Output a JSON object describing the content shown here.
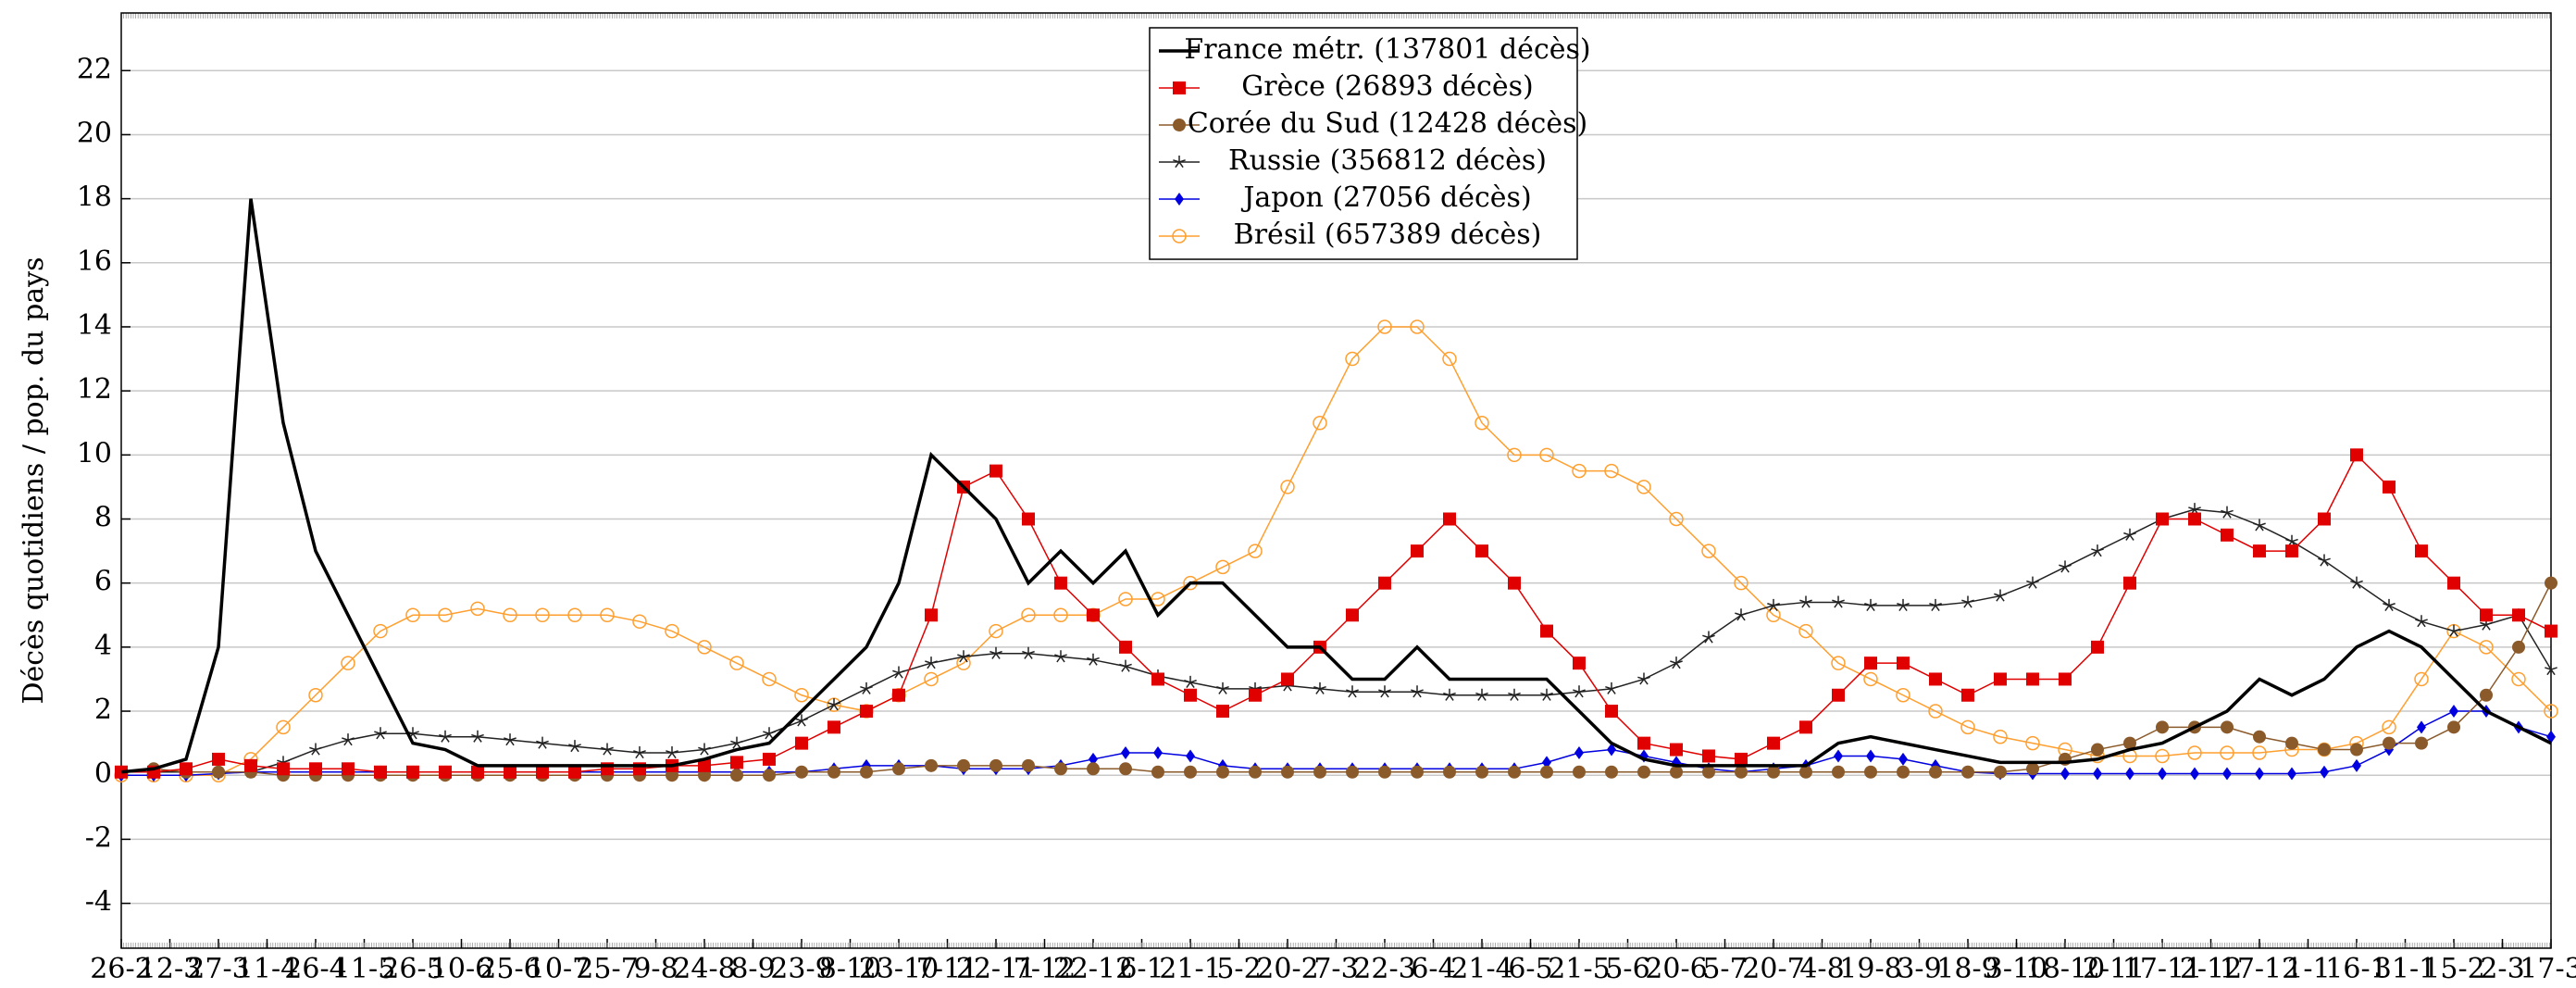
{
  "chart_data": {
    "type": "line",
    "ylabel": "Décès quotidiens / pop. du pays",
    "x": [
      0,
      10,
      20,
      30,
      40,
      50,
      60,
      70,
      80,
      90,
      100,
      110,
      120,
      130,
      140,
      150,
      160,
      170,
      180,
      190,
      200,
      210,
      220,
      230,
      240,
      250,
      260,
      270,
      280,
      290,
      300,
      310,
      320,
      330,
      340,
      350,
      360,
      370,
      380,
      390,
      400,
      410,
      420,
      430,
      440,
      450,
      460,
      470,
      480,
      490,
      500,
      510,
      520,
      530,
      540,
      550,
      560,
      570,
      580,
      590,
      600,
      610,
      620,
      630,
      640,
      650,
      660,
      670,
      680,
      690,
      700,
      710,
      720,
      730,
      740,
      750
    ],
    "xlim": [
      0,
      750
    ],
    "xticks": [
      {
        "value": 0,
        "label": "26-2"
      },
      {
        "value": 15,
        "label": "12-3"
      },
      {
        "value": 30,
        "label": "27-3"
      },
      {
        "value": 45,
        "label": "11-4"
      },
      {
        "value": 60,
        "label": "26-4"
      },
      {
        "value": 75,
        "label": "11-5"
      },
      {
        "value": 90,
        "label": "26-5"
      },
      {
        "value": 105,
        "label": "10-6"
      },
      {
        "value": 120,
        "label": "25-6"
      },
      {
        "value": 135,
        "label": "10-7"
      },
      {
        "value": 150,
        "label": "25-7"
      },
      {
        "value": 165,
        "label": "9-8"
      },
      {
        "value": 180,
        "label": "24-8"
      },
      {
        "value": 195,
        "label": "8-9"
      },
      {
        "value": 210,
        "label": "23-9"
      },
      {
        "value": 225,
        "label": "8-10"
      },
      {
        "value": 240,
        "label": "23-10"
      },
      {
        "value": 255,
        "label": "7-11"
      },
      {
        "value": 270,
        "label": "22-11"
      },
      {
        "value": 285,
        "label": "7-12"
      },
      {
        "value": 300,
        "label": "22-12"
      },
      {
        "value": 315,
        "label": "6-1"
      },
      {
        "value": 330,
        "label": "21-1"
      },
      {
        "value": 345,
        "label": "5-2"
      },
      {
        "value": 360,
        "label": "20-2"
      },
      {
        "value": 375,
        "label": "7-3"
      },
      {
        "value": 390,
        "label": "22-3"
      },
      {
        "value": 405,
        "label": "6-4"
      },
      {
        "value": 420,
        "label": "21-4"
      },
      {
        "value": 435,
        "label": "6-5"
      },
      {
        "value": 450,
        "label": "21-5"
      },
      {
        "value": 465,
        "label": "5-6"
      },
      {
        "value": 480,
        "label": "20-6"
      },
      {
        "value": 495,
        "label": "5-7"
      },
      {
        "value": 510,
        "label": "20-7"
      },
      {
        "value": 525,
        "label": "4-8"
      },
      {
        "value": 540,
        "label": "19-8"
      },
      {
        "value": 555,
        "label": "3-9"
      },
      {
        "value": 570,
        "label": "18-9"
      },
      {
        "value": 585,
        "label": "3-10"
      },
      {
        "value": 600,
        "label": "18-10"
      },
      {
        "value": 615,
        "label": "2-11"
      },
      {
        "value": 630,
        "label": "17-11"
      },
      {
        "value": 645,
        "label": "2-12"
      },
      {
        "value": 660,
        "label": "17-12"
      },
      {
        "value": 675,
        "label": "1-1"
      },
      {
        "value": 690,
        "label": "16-1"
      },
      {
        "value": 705,
        "label": "31-1"
      },
      {
        "value": 720,
        "label": "15-2"
      },
      {
        "value": 735,
        "label": "2-3"
      },
      {
        "value": 750,
        "label": "17-3"
      }
    ],
    "ylim": [
      -5.4,
      23.8
    ],
    "yticks": [
      -4,
      -2,
      0,
      2,
      4,
      6,
      8,
      10,
      12,
      14,
      16,
      18,
      20,
      22
    ],
    "grid": true,
    "legend": "top",
    "series": [
      {
        "name": "France métr. (137801 décès)",
        "color": "#000000",
        "marker": "none",
        "values": [
          0.1,
          0.2,
          0.5,
          4,
          18,
          11,
          7,
          5,
          3,
          1,
          0.8,
          0.3,
          0.3,
          0.3,
          0.3,
          0.3,
          0.3,
          0.3,
          0.5,
          0.8,
          1,
          2,
          3,
          4,
          6,
          10,
          9,
          8,
          6,
          7,
          6,
          7,
          5,
          6,
          6,
          5,
          4,
          4,
          3,
          3,
          4,
          3,
          3,
          3,
          3,
          2,
          1,
          0.5,
          0.3,
          0.3,
          0.3,
          0.3,
          0.3,
          1,
          1.2,
          1,
          0.8,
          0.6,
          0.4,
          0.4,
          0.4,
          0.5,
          0.8,
          1,
          1.5,
          2,
          3,
          2.5,
          3,
          4,
          4.5,
          4,
          3,
          2,
          1.5,
          1
        ]
      },
      {
        "name": "Grèce (26893 décès)",
        "color": "#e00000",
        "marker": "square",
        "values": [
          0.1,
          0.1,
          0.2,
          0.5,
          0.3,
          0.2,
          0.2,
          0.2,
          0.1,
          0.1,
          0.1,
          0.1,
          0.1,
          0.1,
          0.1,
          0.2,
          0.2,
          0.3,
          0.3,
          0.4,
          0.5,
          1,
          1.5,
          2,
          2.5,
          5,
          9,
          9.5,
          8,
          6,
          5,
          4,
          3,
          2.5,
          2,
          2.5,
          3,
          4,
          5,
          6,
          7,
          8,
          7,
          6,
          4.5,
          3.5,
          2,
          1,
          0.8,
          0.6,
          0.5,
          1,
          1.5,
          2.5,
          3.5,
          3.5,
          3,
          2.5,
          3,
          3,
          3,
          4,
          6,
          8,
          8,
          7.5,
          7,
          7,
          8,
          10,
          9,
          7,
          6,
          5,
          5,
          4.5
        ]
      },
      {
        "name": "Corée du Sud (12428 décès)",
        "color": "#8b5a2b",
        "marker": "circle",
        "values": [
          0.1,
          0.2,
          0.1,
          0.1,
          0.1,
          0,
          0,
          0,
          0,
          0,
          0,
          0,
          0,
          0,
          0,
          0,
          0,
          0,
          0,
          0,
          0,
          0.1,
          0.1,
          0.1,
          0.2,
          0.3,
          0.3,
          0.3,
          0.3,
          0.2,
          0.2,
          0.2,
          0.1,
          0.1,
          0.1,
          0.1,
          0.1,
          0.1,
          0.1,
          0.1,
          0.1,
          0.1,
          0.1,
          0.1,
          0.1,
          0.1,
          0.1,
          0.1,
          0.1,
          0.1,
          0.1,
          0.1,
          0.1,
          0.1,
          0.1,
          0.1,
          0.1,
          0.1,
          0.1,
          0.2,
          0.5,
          0.8,
          1,
          1.5,
          1.5,
          1.5,
          1.2,
          1,
          0.8,
          0.8,
          1,
          1,
          1.5,
          2.5,
          4,
          6
        ]
      },
      {
        "name": "Russie (356812 décès)",
        "color": "#222222",
        "marker": "star",
        "values": [
          0.1,
          0.1,
          0.1,
          0.1,
          0.1,
          0.4,
          0.8,
          1.1,
          1.3,
          1.3,
          1.2,
          1.2,
          1.1,
          1,
          0.9,
          0.8,
          0.7,
          0.7,
          0.8,
          1,
          1.3,
          1.7,
          2.2,
          2.7,
          3.2,
          3.5,
          3.7,
          3.8,
          3.8,
          3.7,
          3.6,
          3.4,
          3.1,
          2.9,
          2.7,
          2.7,
          2.8,
          2.7,
          2.6,
          2.6,
          2.6,
          2.5,
          2.5,
          2.5,
          2.5,
          2.6,
          2.7,
          3,
          3.5,
          4.3,
          5,
          5.3,
          5.4,
          5.4,
          5.3,
          5.3,
          5.3,
          5.4,
          5.6,
          6,
          6.5,
          7,
          7.5,
          8,
          8.3,
          8.2,
          7.8,
          7.3,
          6.7,
          6,
          5.3,
          4.8,
          4.5,
          4.7,
          5,
          3.3
        ]
      },
      {
        "name": "Japon (27056 décès)",
        "color": "#0000e0",
        "marker": "diamond",
        "values": [
          0,
          0,
          0,
          0.05,
          0.1,
          0.1,
          0.1,
          0.1,
          0.1,
          0.1,
          0.1,
          0.1,
          0.1,
          0.1,
          0.1,
          0.1,
          0.1,
          0.1,
          0.1,
          0.1,
          0.1,
          0.1,
          0.2,
          0.3,
          0.3,
          0.3,
          0.2,
          0.2,
          0.2,
          0.3,
          0.5,
          0.7,
          0.7,
          0.6,
          0.3,
          0.2,
          0.2,
          0.2,
          0.2,
          0.2,
          0.2,
          0.2,
          0.2,
          0.2,
          0.4,
          0.7,
          0.8,
          0.6,
          0.4,
          0.2,
          0.1,
          0.2,
          0.3,
          0.6,
          0.6,
          0.5,
          0.3,
          0.1,
          0.05,
          0.05,
          0.05,
          0.05,
          0.05,
          0.05,
          0.05,
          0.05,
          0.05,
          0.05,
          0.1,
          0.3,
          0.8,
          1.5,
          2,
          2,
          1.5,
          1.2
        ]
      },
      {
        "name": "Brésil (657389 décès)",
        "color": "#ff9f2f",
        "marker": "open-circle",
        "values": [
          0,
          0,
          0,
          0,
          0.5,
          1.5,
          2.5,
          3.5,
          4.5,
          5,
          5,
          5.2,
          5,
          5,
          5,
          5,
          4.8,
          4.5,
          4,
          3.5,
          3,
          2.5,
          2.2,
          2,
          2.5,
          3,
          3.5,
          4.5,
          5,
          5,
          5,
          5.5,
          5.5,
          6,
          6.5,
          7,
          9,
          11,
          13,
          14,
          14,
          13,
          11,
          10,
          10,
          9.5,
          9.5,
          9,
          8,
          7,
          6,
          5,
          4.5,
          3.5,
          3,
          2.5,
          2,
          1.5,
          1.2,
          1,
          0.8,
          0.6,
          0.6,
          0.6,
          0.7,
          0.7,
          0.7,
          0.8,
          0.8,
          1,
          1.5,
          3,
          4.5,
          4,
          3,
          2
        ]
      }
    ]
  }
}
